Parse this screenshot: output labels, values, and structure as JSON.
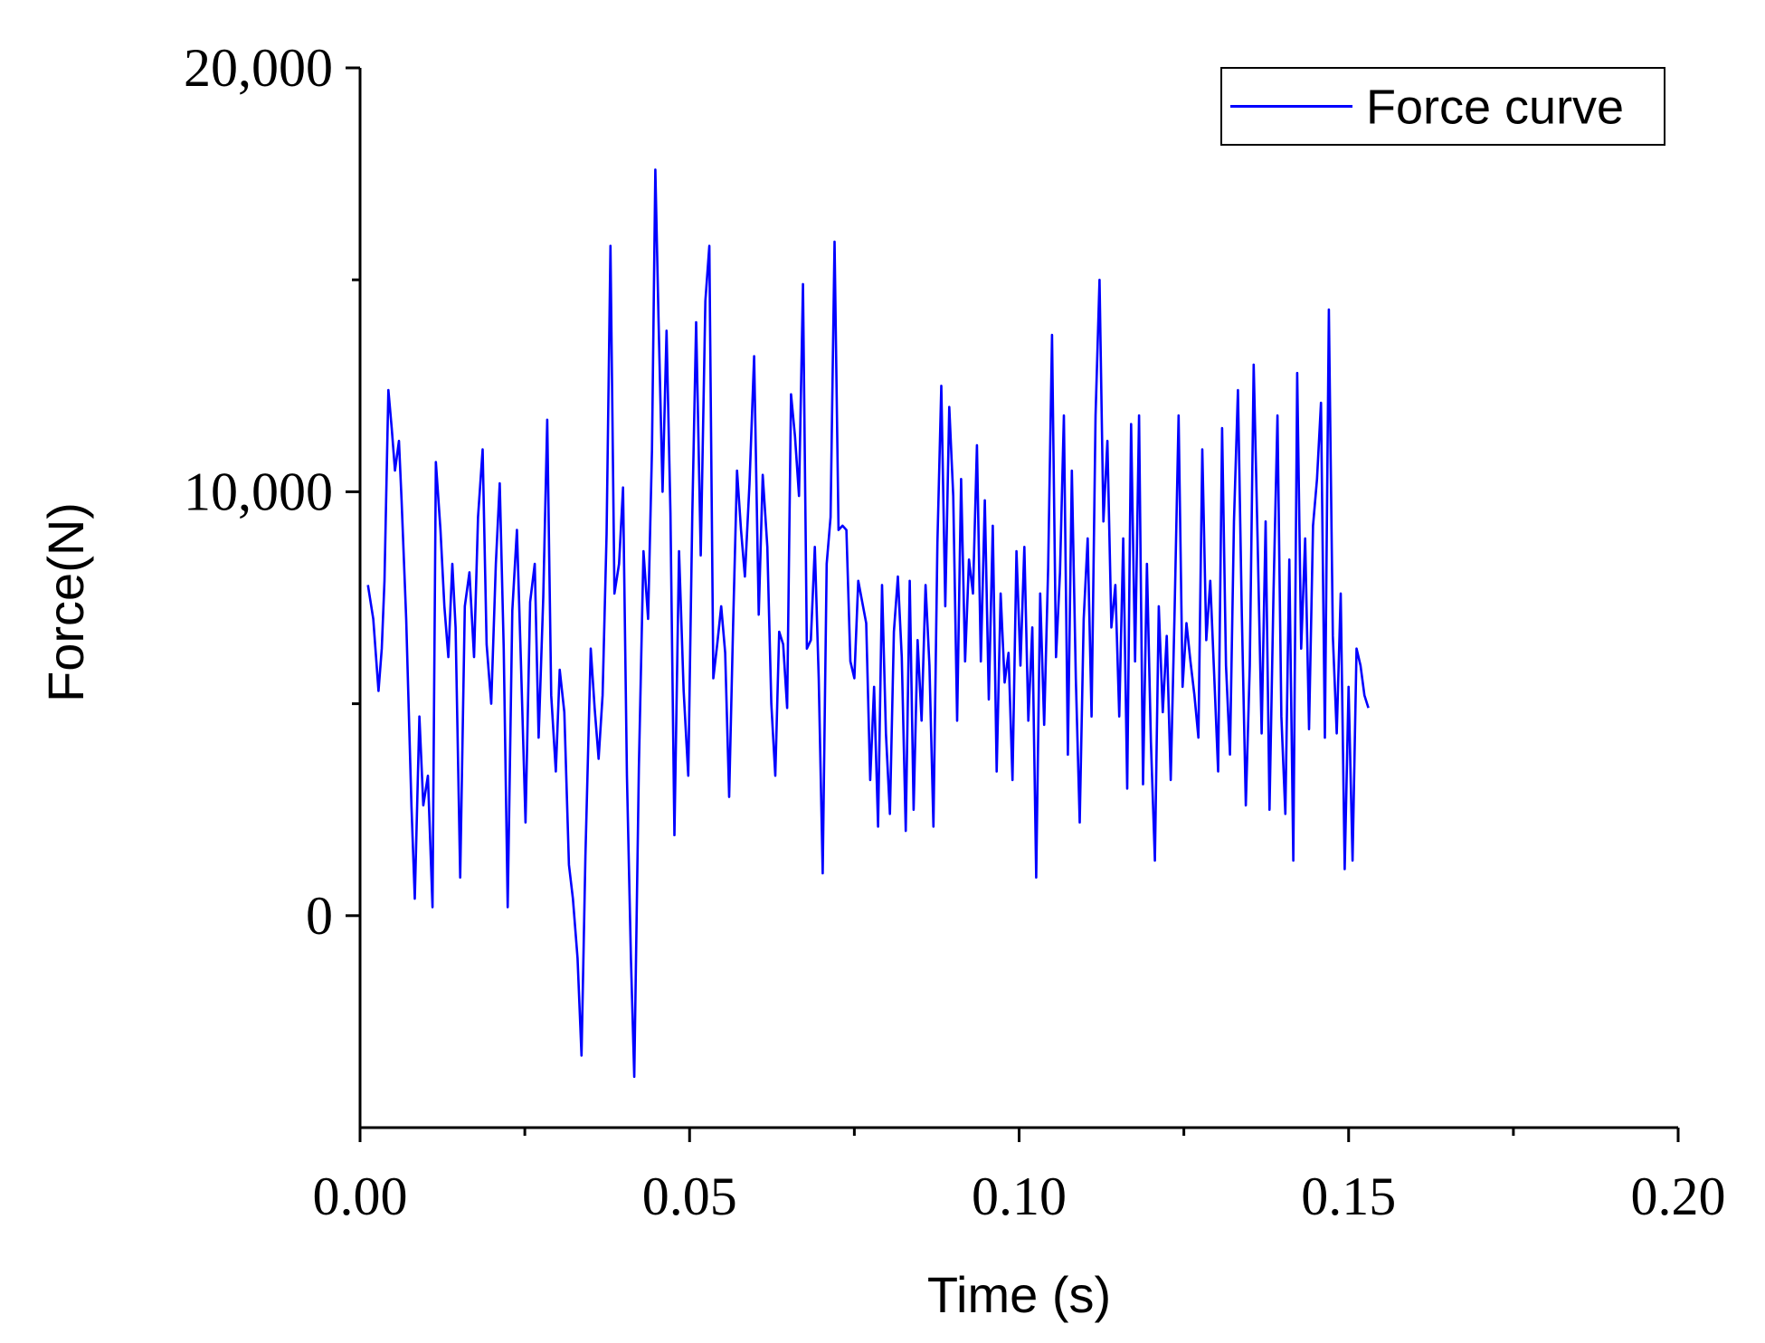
{
  "chart_data": {
    "type": "line",
    "xlabel": "Time (s)",
    "ylabel": "Force(N)",
    "xlim": [
      0,
      0.2
    ],
    "ylim": [
      -5000,
      20000
    ],
    "x_ticks": [
      {
        "value": 0.0,
        "label": "0.00"
      },
      {
        "value": 0.05,
        "label": "0.05"
      },
      {
        "value": 0.1,
        "label": "0.10"
      },
      {
        "value": 0.15,
        "label": "0.15"
      },
      {
        "value": 0.2,
        "label": "0.20"
      }
    ],
    "x_minor_ticks": [
      0.025,
      0.075,
      0.125,
      0.175
    ],
    "y_ticks": [
      {
        "value": 0,
        "label": "0"
      },
      {
        "value": 10000,
        "label": "10,000"
      },
      {
        "value": 20000,
        "label": "20,000"
      }
    ],
    "y_minor_ticks": [
      5000,
      15000
    ],
    "legend": {
      "position": "top-right",
      "entries": [
        "Force curve"
      ]
    },
    "grid": false,
    "colors": {
      "series": "#0000ff",
      "axis": "#000000"
    },
    "series": [
      {
        "name": "Force curve",
        "points": [
          [
            0.0012,
            7800
          ],
          [
            0.002,
            7000
          ],
          [
            0.0028,
            5300
          ],
          [
            0.0033,
            6300
          ],
          [
            0.0037,
            7900
          ],
          [
            0.0043,
            12400
          ],
          [
            0.0048,
            11500
          ],
          [
            0.0053,
            10500
          ],
          [
            0.0059,
            11200
          ],
          [
            0.0063,
            9800
          ],
          [
            0.007,
            7000
          ],
          [
            0.0078,
            2600
          ],
          [
            0.0083,
            400
          ],
          [
            0.009,
            4700
          ],
          [
            0.0096,
            2600
          ],
          [
            0.0103,
            3300
          ],
          [
            0.011,
            200
          ],
          [
            0.0115,
            10700
          ],
          [
            0.0122,
            9100
          ],
          [
            0.0128,
            7300
          ],
          [
            0.0134,
            6100
          ],
          [
            0.014,
            8300
          ],
          [
            0.0145,
            6800
          ],
          [
            0.0152,
            900
          ],
          [
            0.0159,
            7300
          ],
          [
            0.0166,
            8100
          ],
          [
            0.0173,
            6100
          ],
          [
            0.0179,
            9400
          ],
          [
            0.0186,
            11000
          ],
          [
            0.0192,
            6400
          ],
          [
            0.0199,
            5000
          ],
          [
            0.0206,
            8300
          ],
          [
            0.0212,
            10200
          ],
          [
            0.0218,
            6300
          ],
          [
            0.0224,
            200
          ],
          [
            0.0231,
            7200
          ],
          [
            0.0238,
            9100
          ],
          [
            0.0244,
            6000
          ],
          [
            0.0251,
            2200
          ],
          [
            0.0258,
            7400
          ],
          [
            0.0265,
            8300
          ],
          [
            0.0271,
            4200
          ],
          [
            0.0278,
            7500
          ],
          [
            0.0284,
            11700
          ],
          [
            0.029,
            5200
          ],
          [
            0.0297,
            3400
          ],
          [
            0.0303,
            5800
          ],
          [
            0.031,
            4800
          ],
          [
            0.0317,
            1200
          ],
          [
            0.0323,
            400
          ],
          [
            0.033,
            -1000
          ],
          [
            0.0336,
            -3300
          ],
          [
            0.0342,
            1400
          ],
          [
            0.035,
            6300
          ],
          [
            0.0356,
            4900
          ],
          [
            0.0362,
            3700
          ],
          [
            0.0368,
            5200
          ],
          [
            0.0374,
            9000
          ],
          [
            0.038,
            15800
          ],
          [
            0.0386,
            7600
          ],
          [
            0.0393,
            8300
          ],
          [
            0.0399,
            10100
          ],
          [
            0.0405,
            3300
          ],
          [
            0.0411,
            -1000
          ],
          [
            0.0416,
            -3800
          ],
          [
            0.0423,
            3500
          ],
          [
            0.043,
            8600
          ],
          [
            0.0437,
            7000
          ],
          [
            0.0443,
            11000
          ],
          [
            0.0448,
            17600
          ],
          [
            0.0453,
            14000
          ],
          [
            0.0459,
            10000
          ],
          [
            0.0465,
            13800
          ],
          [
            0.0471,
            9500
          ],
          [
            0.0477,
            1900
          ],
          [
            0.0484,
            8600
          ],
          [
            0.0491,
            5300
          ],
          [
            0.0498,
            3300
          ],
          [
            0.0504,
            9400
          ],
          [
            0.051,
            14000
          ],
          [
            0.0517,
            8500
          ],
          [
            0.0524,
            14500
          ],
          [
            0.053,
            15800
          ],
          [
            0.0536,
            5600
          ],
          [
            0.0542,
            6400
          ],
          [
            0.0548,
            7300
          ],
          [
            0.0554,
            6200
          ],
          [
            0.056,
            2800
          ],
          [
            0.0566,
            6800
          ],
          [
            0.0572,
            10500
          ],
          [
            0.0578,
            9100
          ],
          [
            0.0584,
            8000
          ],
          [
            0.0591,
            10200
          ],
          [
            0.0598,
            13200
          ],
          [
            0.0605,
            7100
          ],
          [
            0.0611,
            10400
          ],
          [
            0.0618,
            8700
          ],
          [
            0.0624,
            5000
          ],
          [
            0.063,
            3300
          ],
          [
            0.0636,
            6700
          ],
          [
            0.0642,
            6400
          ],
          [
            0.0648,
            4900
          ],
          [
            0.0654,
            12300
          ],
          [
            0.066,
            11300
          ],
          [
            0.0666,
            9900
          ],
          [
            0.0672,
            14900
          ],
          [
            0.0678,
            6300
          ],
          [
            0.0684,
            6500
          ],
          [
            0.069,
            8700
          ],
          [
            0.0696,
            5600
          ],
          [
            0.0702,
            1000
          ],
          [
            0.0708,
            8300
          ],
          [
            0.0714,
            9400
          ],
          [
            0.072,
            15900
          ],
          [
            0.0726,
            9100
          ],
          [
            0.0732,
            9200
          ],
          [
            0.0738,
            9100
          ],
          [
            0.0744,
            6000
          ],
          [
            0.075,
            5600
          ],
          [
            0.0756,
            7900
          ],
          [
            0.0762,
            7400
          ],
          [
            0.0768,
            6900
          ],
          [
            0.0774,
            3200
          ],
          [
            0.078,
            5400
          ],
          [
            0.0786,
            2100
          ],
          [
            0.0792,
            7800
          ],
          [
            0.0798,
            4300
          ],
          [
            0.0804,
            2400
          ],
          [
            0.081,
            6700
          ],
          [
            0.0816,
            8000
          ],
          [
            0.0822,
            6100
          ],
          [
            0.0828,
            2000
          ],
          [
            0.0834,
            7900
          ],
          [
            0.084,
            2500
          ],
          [
            0.0846,
            6500
          ],
          [
            0.0852,
            4600
          ],
          [
            0.0858,
            7800
          ],
          [
            0.0864,
            5900
          ],
          [
            0.087,
            2100
          ],
          [
            0.0876,
            8800
          ],
          [
            0.0882,
            12500
          ],
          [
            0.0888,
            7300
          ],
          [
            0.0894,
            12000
          ],
          [
            0.09,
            9900
          ],
          [
            0.0906,
            4600
          ],
          [
            0.0912,
            10300
          ],
          [
            0.0918,
            6000
          ],
          [
            0.0924,
            8400
          ],
          [
            0.093,
            7600
          ],
          [
            0.0936,
            11100
          ],
          [
            0.0942,
            6000
          ],
          [
            0.0948,
            9800
          ],
          [
            0.0954,
            5100
          ],
          [
            0.096,
            9200
          ],
          [
            0.0966,
            3400
          ],
          [
            0.0972,
            7600
          ],
          [
            0.0978,
            5500
          ],
          [
            0.0984,
            6200
          ],
          [
            0.099,
            3200
          ],
          [
            0.0996,
            8600
          ],
          [
            0.1002,
            5900
          ],
          [
            0.1008,
            8700
          ],
          [
            0.1014,
            4600
          ],
          [
            0.102,
            6800
          ],
          [
            0.1026,
            900
          ],
          [
            0.1032,
            7600
          ],
          [
            0.1038,
            4500
          ],
          [
            0.1044,
            8200
          ],
          [
            0.105,
            13700
          ],
          [
            0.1056,
            6100
          ],
          [
            0.1062,
            8100
          ],
          [
            0.1068,
            11800
          ],
          [
            0.1074,
            3800
          ],
          [
            0.108,
            10500
          ],
          [
            0.1086,
            5600
          ],
          [
            0.1092,
            2200
          ],
          [
            0.1098,
            7000
          ],
          [
            0.1104,
            8900
          ],
          [
            0.111,
            4700
          ],
          [
            0.1116,
            11800
          ],
          [
            0.1122,
            15000
          ],
          [
            0.1128,
            9300
          ],
          [
            0.1134,
            11200
          ],
          [
            0.114,
            6800
          ],
          [
            0.1146,
            7800
          ],
          [
            0.1152,
            4700
          ],
          [
            0.1158,
            8900
          ],
          [
            0.1164,
            3000
          ],
          [
            0.117,
            11600
          ],
          [
            0.1176,
            6000
          ],
          [
            0.1182,
            11800
          ],
          [
            0.1188,
            3100
          ],
          [
            0.1194,
            8300
          ],
          [
            0.12,
            4100
          ],
          [
            0.1206,
            1300
          ],
          [
            0.1212,
            7300
          ],
          [
            0.1218,
            4800
          ],
          [
            0.1224,
            6600
          ],
          [
            0.123,
            3200
          ],
          [
            0.1236,
            7200
          ],
          [
            0.1242,
            11800
          ],
          [
            0.1248,
            5400
          ],
          [
            0.1254,
            6900
          ],
          [
            0.126,
            6000
          ],
          [
            0.1266,
            5200
          ],
          [
            0.1272,
            4200
          ],
          [
            0.1278,
            11000
          ],
          [
            0.1284,
            6500
          ],
          [
            0.129,
            7900
          ],
          [
            0.1296,
            5700
          ],
          [
            0.1302,
            3400
          ],
          [
            0.1308,
            11500
          ],
          [
            0.1314,
            5900
          ],
          [
            0.132,
            3800
          ],
          [
            0.1326,
            9300
          ],
          [
            0.1332,
            12400
          ],
          [
            0.1338,
            7100
          ],
          [
            0.1344,
            2600
          ],
          [
            0.135,
            5900
          ],
          [
            0.1356,
            13000
          ],
          [
            0.1362,
            8800
          ],
          [
            0.1368,
            4300
          ],
          [
            0.1374,
            9300
          ],
          [
            0.138,
            2500
          ],
          [
            0.1386,
            7600
          ],
          [
            0.1392,
            11800
          ],
          [
            0.1398,
            4700
          ],
          [
            0.1404,
            2400
          ],
          [
            0.141,
            8400
          ],
          [
            0.1416,
            1300
          ],
          [
            0.1422,
            12800
          ],
          [
            0.1428,
            6300
          ],
          [
            0.1434,
            8900
          ],
          [
            0.144,
            4400
          ],
          [
            0.1446,
            9200
          ],
          [
            0.1452,
            10300
          ],
          [
            0.1458,
            12100
          ],
          [
            0.1464,
            4200
          ],
          [
            0.147,
            14300
          ],
          [
            0.1476,
            6600
          ],
          [
            0.1482,
            4300
          ],
          [
            0.1488,
            7600
          ],
          [
            0.1494,
            1100
          ],
          [
            0.15,
            5400
          ],
          [
            0.1506,
            1300
          ],
          [
            0.1512,
            6300
          ],
          [
            0.1518,
            5900
          ],
          [
            0.1524,
            5200
          ],
          [
            0.153,
            4900
          ]
        ]
      }
    ]
  }
}
